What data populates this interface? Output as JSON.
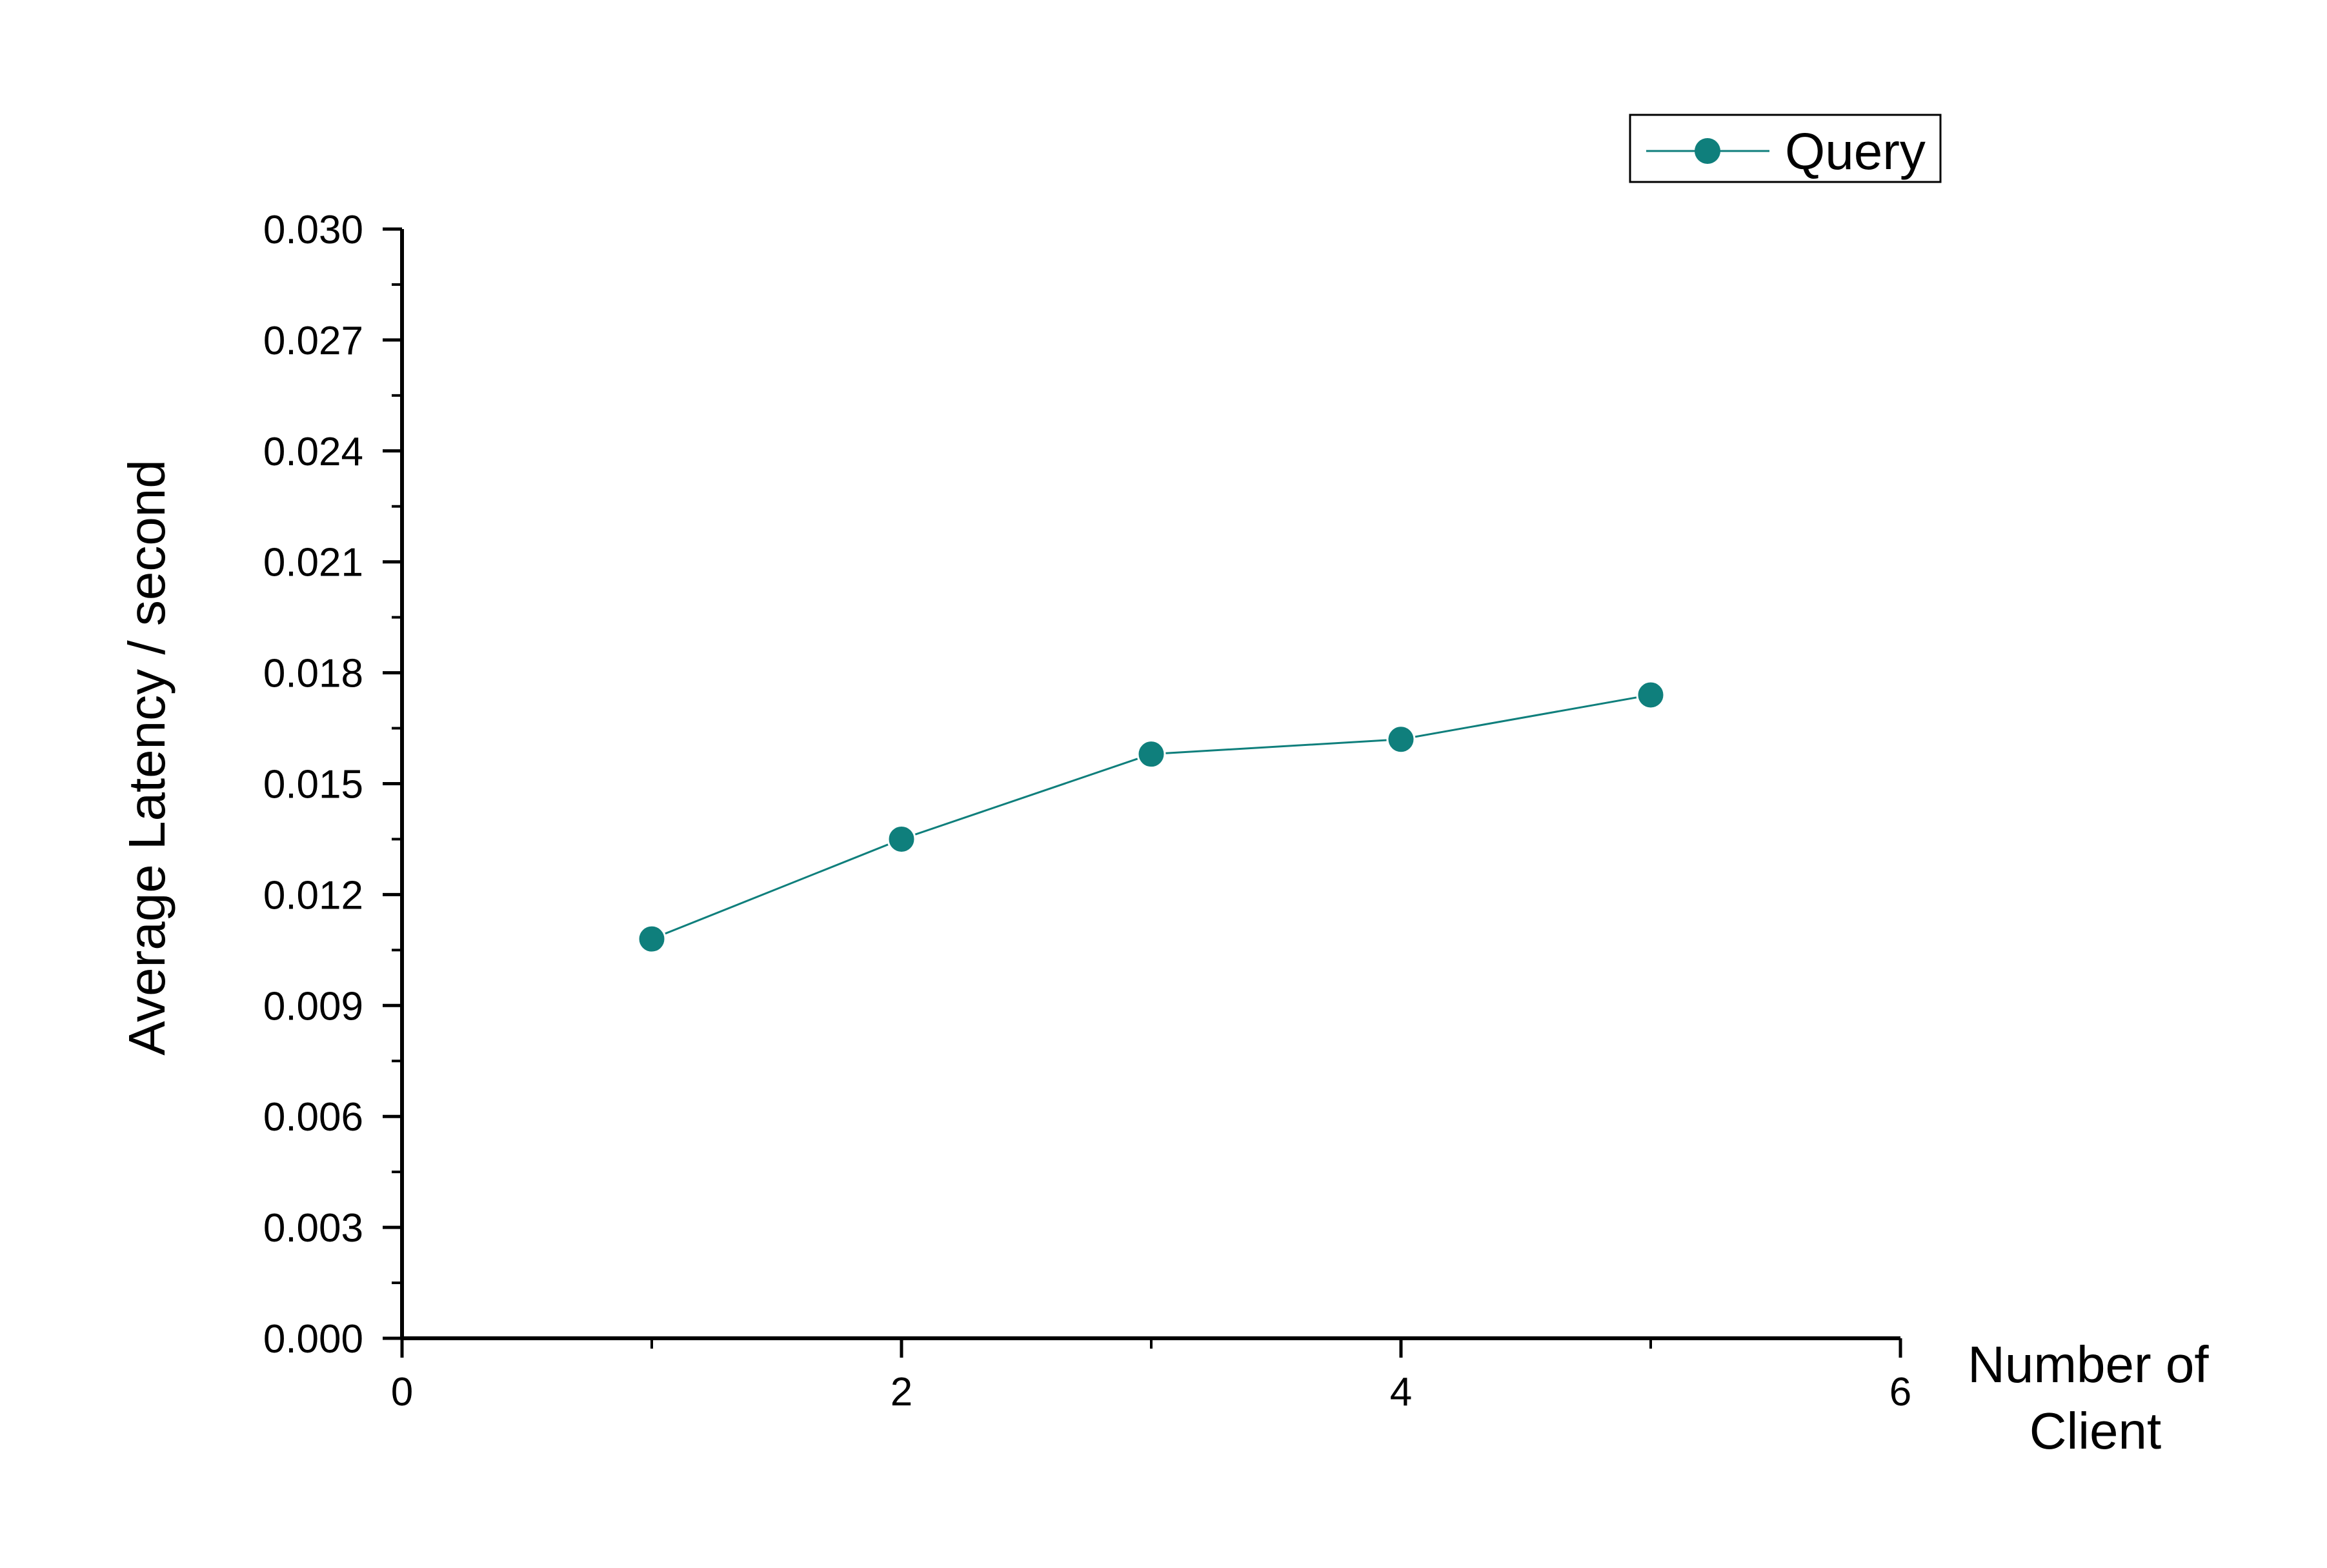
{
  "chart_data": {
    "type": "line",
    "title": "",
    "xlabel": [
      "Number of",
      "Client"
    ],
    "ylabel": "Average Latency / second",
    "xlim": [
      0,
      6
    ],
    "ylim": [
      0,
      0.03
    ],
    "x_ticks": [
      "0",
      "2",
      "4",
      "6"
    ],
    "x_tick_values": [
      0,
      2,
      4,
      6
    ],
    "x_minor_tick_values": [
      1,
      3,
      5
    ],
    "y_ticks": [
      "0.000",
      "0.003",
      "0.006",
      "0.009",
      "0.012",
      "0.015",
      "0.018",
      "0.021",
      "0.024",
      "0.027",
      "0.030"
    ],
    "y_tick_values": [
      0,
      0.003,
      0.006,
      0.009,
      0.012,
      0.015,
      0.018,
      0.021,
      0.024,
      0.027,
      0.03
    ],
    "grid": false,
    "legend_position": "top-right",
    "series": [
      {
        "name": "Query",
        "color": "#0f7f7c",
        "marker": "circle",
        "x": [
          1,
          2,
          3,
          4,
          5
        ],
        "values": [
          0.0108,
          0.0135,
          0.0158,
          0.0162,
          0.0174
        ]
      }
    ]
  }
}
